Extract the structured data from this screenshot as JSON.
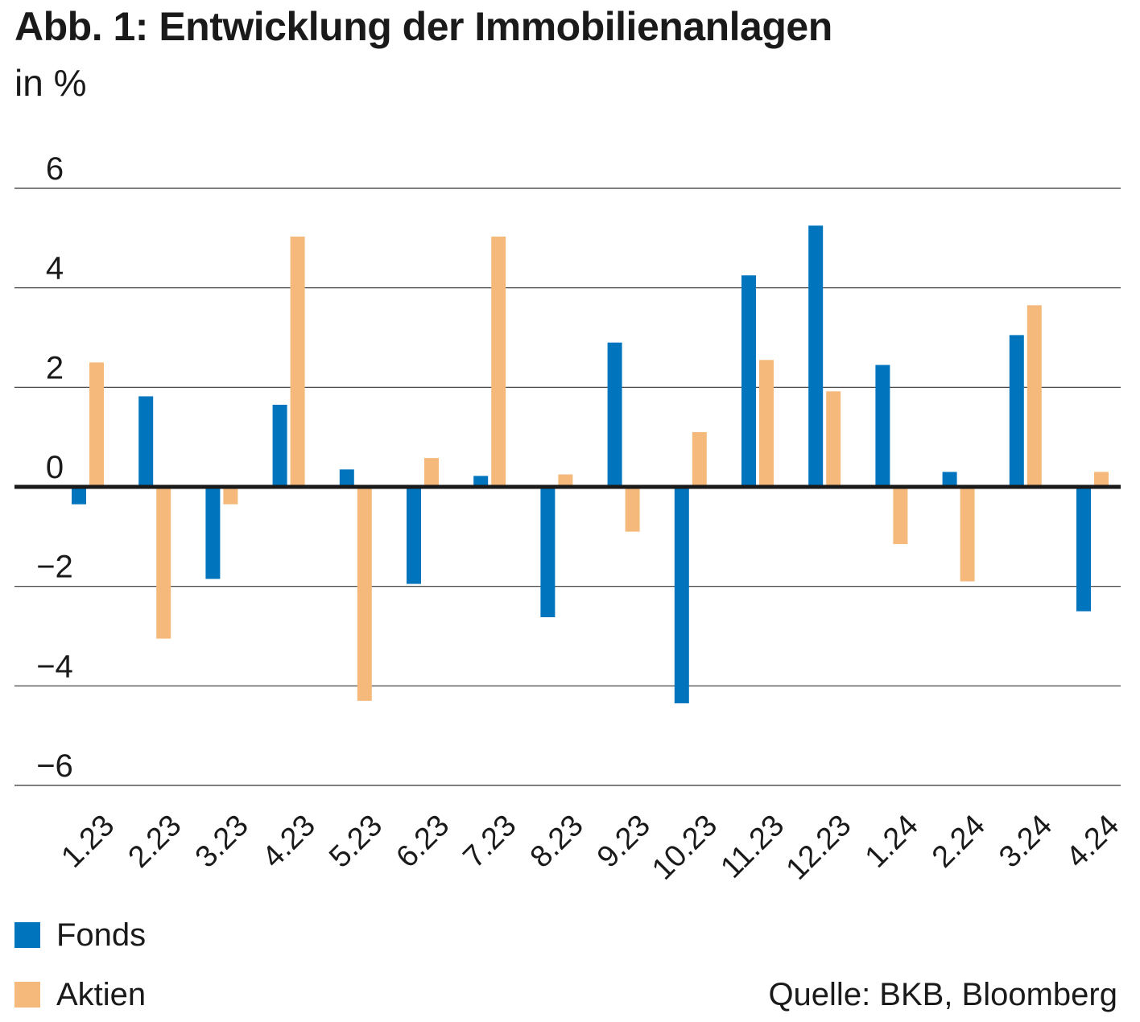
{
  "title": "Abb. 1: Entwicklung der Immobilienanlagen",
  "subtitle": "in %",
  "source": "Quelle: BKB, Bloomberg",
  "colors": {
    "fonds": "#0075be",
    "aktien": "#f5b97c",
    "grid": "#333333",
    "zero": "#1a1a1a"
  },
  "legend": [
    {
      "label": "Fonds",
      "color": "#0075be"
    },
    {
      "label": "Aktien",
      "color": "#f5b97c"
    }
  ],
  "chart_data": {
    "type": "bar",
    "title": "Abb. 1: Entwicklung der Immobilienanlagen",
    "ylabel": "in %",
    "ylim": [
      -6,
      6
    ],
    "yticks": [
      6,
      4,
      2,
      0,
      -2,
      -4,
      -6
    ],
    "ytick_labels": [
      "6",
      "4",
      "2",
      "0",
      "−2",
      "−4",
      "−6"
    ],
    "grid": true,
    "legend_position": "bottom-left",
    "categories": [
      "1.23",
      "2.23",
      "3.23",
      "4.23",
      "5.23",
      "6.23",
      "7.23",
      "8.23",
      "9.23",
      "10.23",
      "11.23",
      "12.23",
      "1.24",
      "2.24",
      "3.24",
      "4.24"
    ],
    "series": [
      {
        "name": "Fonds",
        "color": "#0075be",
        "values": [
          -0.35,
          1.82,
          -1.85,
          1.65,
          0.35,
          -1.95,
          0.22,
          -2.62,
          2.9,
          -4.35,
          4.25,
          5.25,
          2.45,
          0.3,
          3.05,
          -2.5
        ]
      },
      {
        "name": "Aktien",
        "color": "#f5b97c",
        "values": [
          2.5,
          -3.05,
          -0.35,
          5.03,
          -4.3,
          0.58,
          5.03,
          0.25,
          -0.9,
          1.1,
          2.55,
          1.92,
          -1.15,
          -1.9,
          3.65,
          0.3
        ]
      }
    ]
  }
}
